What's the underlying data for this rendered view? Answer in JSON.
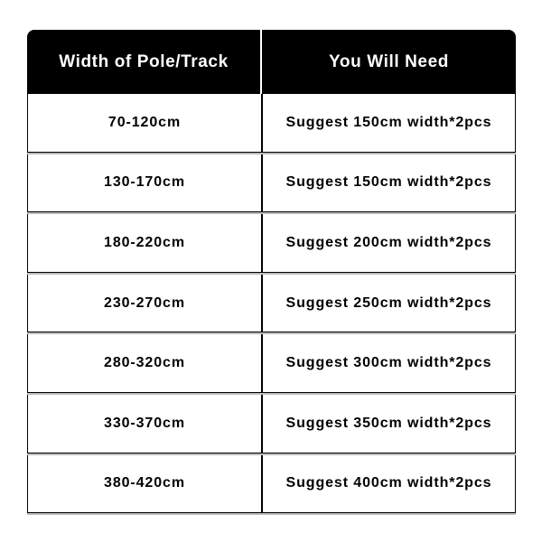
{
  "table": {
    "header": [
      "Width of Pole/Track",
      "You Will Need"
    ],
    "rows": [
      [
        "70-120cm",
        "Suggest 150cm width*2pcs"
      ],
      [
        "130-170cm",
        "Suggest 150cm width*2pcs"
      ],
      [
        "180-220cm",
        "Suggest 200cm width*2pcs"
      ],
      [
        "230-270cm",
        "Suggest 250cm width*2pcs"
      ],
      [
        "280-320cm",
        "Suggest 300cm width*2pcs"
      ],
      [
        "330-370cm",
        "Suggest 350cm width*2pcs"
      ],
      [
        "380-420cm",
        "Suggest 400cm width*2pcs"
      ]
    ]
  }
}
